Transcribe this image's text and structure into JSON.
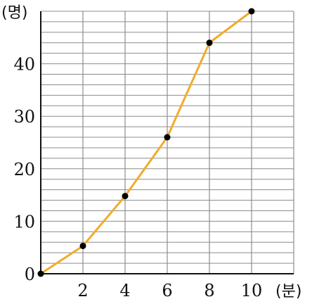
{
  "chart_data": {
    "type": "line",
    "x": [
      0,
      2,
      4,
      6,
      8,
      10
    ],
    "values": [
      0,
      5.3,
      14.8,
      26,
      44,
      50
    ],
    "xlim": [
      0,
      12
    ],
    "ylim": [
      0,
      50
    ],
    "x_ticks": [
      "2",
      "4",
      "6",
      "8",
      "10"
    ],
    "y_ticks": [
      "0",
      "10",
      "20",
      "30",
      "40"
    ],
    "xlabel": "(분)",
    "ylabel": "(명)",
    "grid": true,
    "line_color": "#f0ac2a",
    "point_color": "#000000",
    "grid_color": "#8c8c8c"
  }
}
